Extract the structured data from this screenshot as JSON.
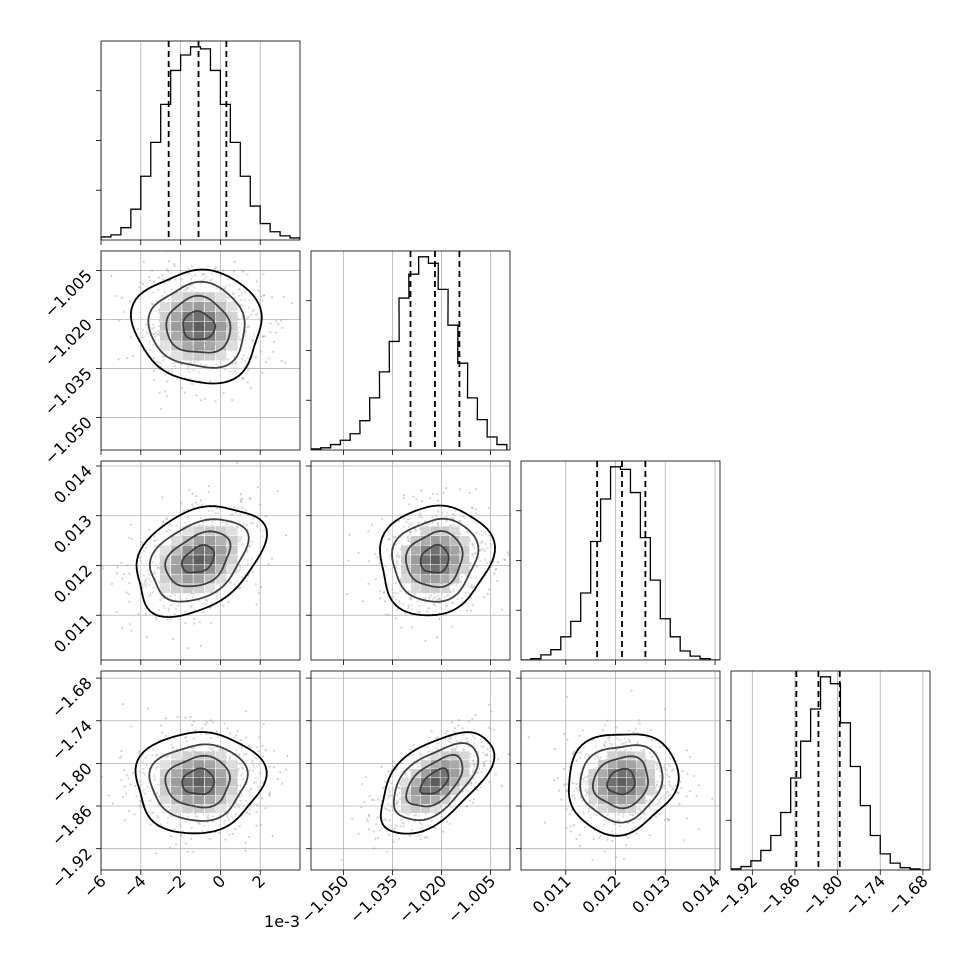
{
  "chart_data": {
    "type": "corner",
    "grid": true,
    "quantile_line_style": "dashed",
    "offset_text": "1e-3",
    "params": [
      {
        "range": [
          -6,
          4
        ],
        "ticks": [
          -6,
          -4,
          -2,
          0,
          2
        ],
        "tick_labels": [
          "−6",
          "−4",
          "−2",
          "0",
          "2"
        ],
        "quantiles": [
          -2.6,
          -1.1,
          0.3
        ],
        "center": -1.1,
        "sd": 1.4,
        "hist_x": [
          -5.75,
          -5.25,
          -4.75,
          -4.25,
          -3.75,
          -3.25,
          -2.75,
          -2.25,
          -1.75,
          -1.25,
          -0.75,
          -0.25,
          0.25,
          0.75,
          1.25,
          1.75,
          2.25,
          2.75,
          3.25,
          3.75
        ],
        "hist_counts": [
          3,
          5,
          12,
          30,
          62,
          95,
          132,
          165,
          180,
          188,
          186,
          165,
          132,
          95,
          62,
          33,
          16,
          8,
          4,
          2
        ]
      },
      {
        "range": [
          -1.06,
          -0.999
        ],
        "ticks": [
          -1.05,
          -1.035,
          -1.02,
          -1.005
        ],
        "tick_labels": [
          "−1.050",
          "−1.035",
          "−1.020",
          "−1.005"
        ],
        "quantiles": [
          -1.0295,
          -1.022,
          -1.0145
        ],
        "center": -1.022,
        "sd": 0.0075,
        "hist_x": [
          -1.0585,
          -1.0555,
          -1.0525,
          -1.0495,
          -1.0465,
          -1.0435,
          -1.0405,
          -1.0375,
          -1.0345,
          -1.0315,
          -1.0285,
          -1.0255,
          -1.0225,
          -1.0195,
          -1.0165,
          -1.0135,
          -1.0105,
          -1.0075,
          -1.0045,
          -1.0015
        ],
        "hist_counts": [
          1,
          2,
          5,
          9,
          15,
          27,
          48,
          72,
          100,
          140,
          162,
          178,
          172,
          148,
          115,
          80,
          48,
          28,
          12,
          5
        ]
      },
      {
        "range": [
          0.0101,
          0.0141
        ],
        "ticks": [
          0.011,
          0.012,
          0.013,
          0.014
        ],
        "tick_labels": [
          "0.011",
          "0.012",
          "0.013",
          "0.014"
        ],
        "quantiles": [
          0.01163,
          0.01213,
          0.0126
        ],
        "center": 0.01212,
        "sd": 0.00048,
        "hist_x": [
          0.0102,
          0.0104,
          0.0106,
          0.0108,
          0.011,
          0.0112,
          0.0114,
          0.0116,
          0.0118,
          0.012,
          0.0122,
          0.0124,
          0.0126,
          0.0128,
          0.013,
          0.0132,
          0.0134,
          0.0136,
          0.0138,
          0.014
        ],
        "hist_counts": [
          0,
          1,
          4,
          8,
          18,
          30,
          52,
          92,
          125,
          150,
          148,
          130,
          95,
          62,
          32,
          18,
          7,
          3,
          1,
          0
        ]
      },
      {
        "range": [
          -1.95,
          -1.67
        ],
        "ticks": [
          -1.92,
          -1.86,
          -1.8,
          -1.74,
          -1.68
        ],
        "tick_labels": [
          "−1.92",
          "−1.86",
          "−1.80",
          "−1.74",
          "−1.68"
        ],
        "quantiles": [
          -1.858,
          -1.827,
          -1.797
        ],
        "center": -1.826,
        "sd": 0.031,
        "hist_x": [
          -1.943,
          -1.929,
          -1.915,
          -1.901,
          -1.887,
          -1.873,
          -1.859,
          -1.845,
          -1.831,
          -1.817,
          -1.803,
          -1.789,
          -1.775,
          -1.761,
          -1.747,
          -1.733,
          -1.719,
          -1.705,
          -1.691,
          -1.677
        ],
        "hist_counts": [
          1,
          3,
          8,
          17,
          30,
          50,
          80,
          112,
          140,
          168,
          162,
          128,
          90,
          56,
          30,
          14,
          6,
          2,
          1,
          0
        ]
      }
    ],
    "correlations": {
      "1-0": -0.05,
      "2-0": 0.35,
      "2-1": 0.1,
      "3-0": 0.05,
      "3-1": 0.55,
      "3-2": 0.1
    },
    "contour_levels_sigma": [
      0.5,
      1.0,
      1.5,
      2.0
    ],
    "scatter_points_per_panel": 700
  }
}
